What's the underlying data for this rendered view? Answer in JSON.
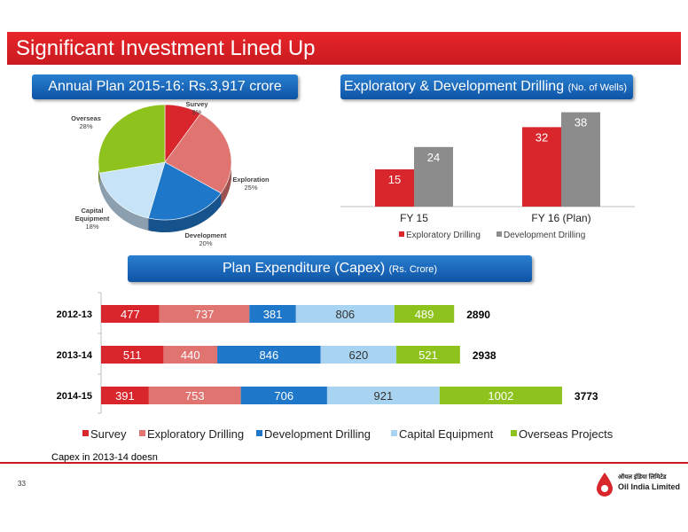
{
  "slide": {
    "title": "Significant Investment Lined Up",
    "footnote": "Capex in 2013-14 doesn",
    "page_number": "33",
    "logo_hindi": "ऑयल इंडिया लिमिटेड",
    "logo_english": "Oil India Limited"
  },
  "banners": {
    "pie": "Annual Plan 2015-16: Rs.3,917 crore",
    "drilling_main": "Exploratory & Development Drilling",
    "drilling_unit": "(No. of Wells)",
    "capex_main": "Plan Expenditure (Capex)",
    "capex_unit": "(Rs. Crore)"
  },
  "chart_data": [
    {
      "type": "pie",
      "slices": [
        {
          "label": "Survey",
          "value": 9,
          "display": "9%",
          "color": "#d9262c"
        },
        {
          "label": "Exploration",
          "value": 25,
          "display": "25%",
          "color": "#e07470"
        },
        {
          "label": "Development",
          "value": 20,
          "display": "20%",
          "color": "#1f77c9"
        },
        {
          "label": "Capital Equipment",
          "value": 18,
          "display": "18%",
          "color": "#c6e3f8"
        },
        {
          "label": "Overseas",
          "value": 28,
          "display": "28%",
          "color": "#8ec21d"
        }
      ]
    },
    {
      "type": "bar",
      "categories": [
        "FY 15",
        "FY 16 (Plan)"
      ],
      "series": [
        {
          "name": "Exploratory Drilling",
          "values": [
            15,
            32
          ],
          "color": "#d9262c"
        },
        {
          "name": "Development Drilling",
          "values": [
            24,
            38
          ],
          "color": "#8c8c8c"
        }
      ],
      "legend": "bottom",
      "ylim": [
        0,
        40
      ]
    },
    {
      "type": "bar",
      "orientation": "horizontal",
      "stacked": true,
      "categories": [
        "2012-13",
        "2013-14",
        "2014-15"
      ],
      "series": [
        {
          "name": "Survey",
          "values": [
            477,
            511,
            391
          ],
          "color": "#d9262c"
        },
        {
          "name": "Exploratory Drilling",
          "values": [
            737,
            440,
            753
          ],
          "color": "#e07470"
        },
        {
          "name": "Development Drilling",
          "values": [
            381,
            846,
            706
          ],
          "color": "#1f77c9"
        },
        {
          "name": "Capital Equipment",
          "values": [
            806,
            620,
            921
          ],
          "color": "#a8d4f2"
        },
        {
          "name": "Overseas Projects",
          "values": [
            489,
            521,
            1002
          ],
          "color": "#8ec21d"
        }
      ],
      "totals": [
        "2890",
        "2938",
        "3773"
      ],
      "legend": "bottom"
    }
  ]
}
